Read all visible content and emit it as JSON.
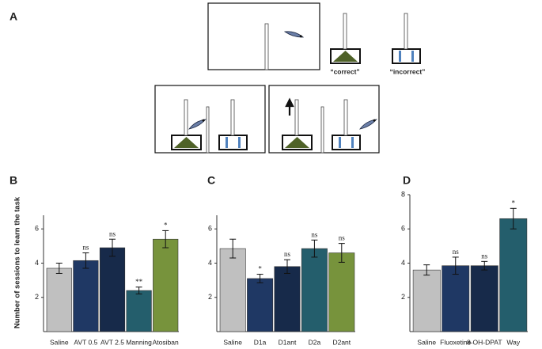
{
  "panel_a": {
    "label": "A",
    "correct": "“correct”",
    "incorrect": "“incorrect”"
  },
  "chart_data": [
    {
      "type": "bar",
      "panel_label": "B",
      "ylabel": "Number of sessions to learn the task",
      "categories": [
        "Saline",
        "AVT 0.5",
        "AVT 2.5",
        "Manning",
        "Atosiban"
      ],
      "values": [
        3.7,
        4.15,
        4.9,
        2.4,
        5.4
      ],
      "errors": [
        0.3,
        0.45,
        0.5,
        0.2,
        0.5
      ],
      "annotations": [
        null,
        "ns",
        "ns",
        "**",
        "*"
      ],
      "colors": [
        "#c0c0c0",
        "#1f3864",
        "#172a4a",
        "#245e6c",
        "#77933c"
      ],
      "ylim": [
        0,
        6.8
      ],
      "yticks": [
        2,
        4,
        6
      ]
    },
    {
      "type": "bar",
      "panel_label": "C",
      "categories": [
        "Saline",
        "D1a",
        "D1ant",
        "D2a",
        "D2ant"
      ],
      "values": [
        4.85,
        3.1,
        3.8,
        4.85,
        4.6
      ],
      "errors": [
        0.55,
        0.25,
        0.4,
        0.5,
        0.55
      ],
      "annotations": [
        null,
        "*",
        "ns",
        "ns",
        "ns"
      ],
      "colors": [
        "#c0c0c0",
        "#1f3864",
        "#172a4a",
        "#245e6c",
        "#77933c"
      ],
      "ylim": [
        0,
        6.8
      ],
      "yticks": [
        2,
        4,
        6
      ]
    },
    {
      "type": "bar",
      "panel_label": "D",
      "categories": [
        "Saline",
        "Fluoxetine",
        "8-OH-DPAT",
        "Way"
      ],
      "values": [
        3.6,
        3.85,
        3.85,
        6.6
      ],
      "errors": [
        0.3,
        0.5,
        0.25,
        0.6
      ],
      "annotations": [
        null,
        "ns",
        "ns",
        "*"
      ],
      "colors": [
        "#c0c0c0",
        "#1f3864",
        "#172a4a",
        "#245e6c"
      ],
      "ylim": [
        0,
        8
      ],
      "yticks": [
        2,
        4,
        6,
        8
      ]
    }
  ]
}
